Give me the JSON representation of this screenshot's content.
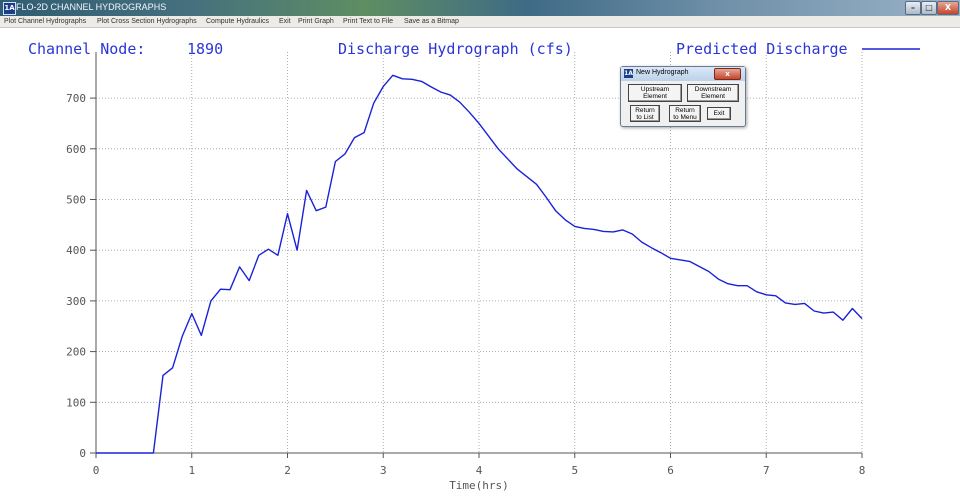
{
  "window": {
    "title": "FLO-2D CHANNEL HYDROGRAPHS",
    "app_icon_text": "1A",
    "controls": {
      "minimize": "–",
      "maximize": "□",
      "close": "X"
    }
  },
  "menu": {
    "items": [
      "Plot Channel Hydrographs",
      "Plot Cross Section Hydrographs",
      "Compute Hydraulics",
      "Exit",
      "Print Graph",
      "Print Text to File",
      "Save as a Bitmap"
    ]
  },
  "header": {
    "node_label": "Channel Node:",
    "node_value": "1890",
    "graph_title": "Discharge Hydrograph (cfs)",
    "legend_label": "Predicted Discharge"
  },
  "dialog": {
    "title": "New Hydrograph",
    "close": "x",
    "upstream": "Upstream\nElement",
    "downstream": "Downstream\nElement",
    "return_list": "Return\nto List",
    "return_menu": "Return\nto Menu",
    "exit": "Exit"
  },
  "colors": {
    "series": "#1a22d8",
    "grid": "#9a9a9a",
    "text": "#2a35d8"
  },
  "chart_data": {
    "type": "line",
    "title": "Discharge Hydrograph (cfs)",
    "xlabel": "Time(hrs)",
    "ylabel": "",
    "xlim": [
      0,
      8
    ],
    "ylim": [
      0,
      750
    ],
    "xticks": [
      0,
      1,
      2,
      3,
      4,
      5,
      6,
      7,
      8
    ],
    "yticks": [
      0,
      100,
      200,
      300,
      400,
      500,
      600,
      700
    ],
    "grid": true,
    "legend_position": "top-right",
    "series": [
      {
        "name": "Predicted Discharge",
        "x": [
          0,
          0.6,
          0.7,
          0.8,
          0.9,
          1.0,
          1.1,
          1.2,
          1.3,
          1.4,
          1.5,
          1.6,
          1.7,
          1.8,
          1.9,
          2.0,
          2.1,
          2.2,
          2.3,
          2.4,
          2.5,
          2.6,
          2.7,
          2.8,
          2.9,
          3.0,
          3.1,
          3.2,
          3.3,
          3.4,
          3.5,
          3.6,
          3.7,
          3.8,
          3.9,
          4.0,
          4.2,
          4.4,
          4.6,
          4.7,
          4.8,
          4.9,
          5.0,
          5.1,
          5.2,
          5.3,
          5.4,
          5.5,
          5.6,
          5.7,
          5.8,
          5.9,
          6.0,
          6.2,
          6.4,
          6.5,
          6.6,
          6.7,
          6.8,
          6.9,
          7.0,
          7.1,
          7.2,
          7.3,
          7.4,
          7.5,
          7.6,
          7.7,
          7.8,
          7.9,
          8.0
        ],
        "y": [
          0,
          0,
          153,
          168,
          230,
          275,
          232,
          300,
          323,
          322,
          367,
          340,
          390,
          402,
          390,
          472,
          400,
          518,
          478,
          485,
          575,
          590,
          622,
          632,
          690,
          723,
          745,
          738,
          737,
          733,
          722,
          712,
          706,
          692,
          672,
          650,
          600,
          560,
          530,
          505,
          478,
          460,
          447,
          443,
          441,
          437,
          436,
          440,
          432,
          416,
          405,
          395,
          384,
          378,
          358,
          343,
          334,
          330,
          330,
          318,
          312,
          310,
          296,
          293,
          295,
          280,
          276,
          278,
          262,
          285,
          265
        ]
      }
    ]
  }
}
